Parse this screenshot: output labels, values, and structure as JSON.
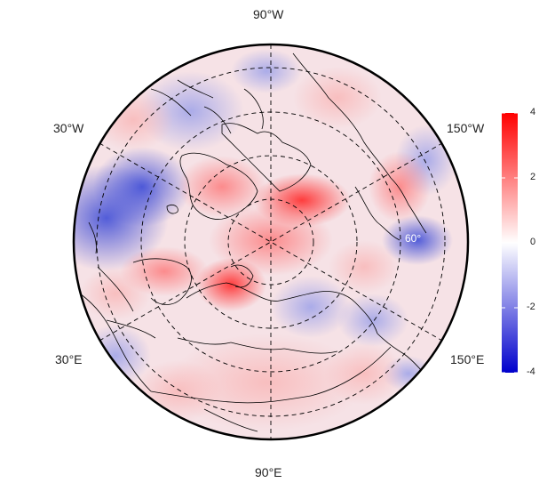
{
  "map": {
    "projection": "north-polar-stereographic",
    "colormap": "blue-white-red diverging",
    "longitude_labels": {
      "top": "90°W",
      "upper_left": "30°W",
      "upper_right": "150°W",
      "lower_left": "30°E",
      "lower_right": "150°E",
      "bottom": "90°E"
    },
    "inner_label": "60°",
    "colorbar": {
      "ticks": [
        "4",
        "2",
        "0",
        "-2",
        "-4"
      ],
      "colors": {
        "high": "#ff0000",
        "mid": "#ffffff",
        "low": "#0000cc"
      }
    },
    "colors": {
      "red": "#ff3b3b",
      "light_red": "#f7c8c8",
      "blue": "#3d4fd6",
      "light_blue": "#c9cdf3",
      "coast": "#000000",
      "grid": "#000000"
    }
  }
}
